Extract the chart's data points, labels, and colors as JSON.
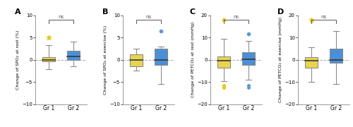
{
  "panels": [
    {
      "label": "A",
      "ylabel": "Change of SPO₂ at rest (%)",
      "ylim": [
        -10,
        10
      ],
      "yticks": [
        -10,
        -5,
        0,
        5,
        10
      ],
      "groups": [
        {
          "name": "Gr 1",
          "color": "#e8d44d",
          "median": 0.0,
          "q1": -0.4,
          "q3": 0.6,
          "whislo": -2.2,
          "whishi": 3.2,
          "fliers_above": [
            5.0
          ],
          "fliers_above_marker": "*",
          "fliers_below": []
        },
        {
          "name": "Gr 2",
          "color": "#4a90d9",
          "median": 0.8,
          "q1": 0.0,
          "q3": 2.0,
          "whislo": -1.5,
          "whishi": 4.0,
          "fliers_above": [],
          "fliers_above_marker": "o",
          "fliers_below": []
        }
      ]
    },
    {
      "label": "B",
      "ylabel": "Change of SPO₂ at exercise (%)",
      "ylim": [
        -10,
        10
      ],
      "yticks": [
        -10,
        -5,
        0,
        5,
        10
      ],
      "groups": [
        {
          "name": "Gr 1",
          "color": "#e8d44d",
          "median": 0.0,
          "q1": -1.5,
          "q3": 1.2,
          "whislo": -2.5,
          "whishi": 2.5,
          "fliers_above": [],
          "fliers_above_marker": "*",
          "fliers_below": []
        },
        {
          "name": "Gr 2",
          "color": "#4a90d9",
          "median": 0.0,
          "q1": -1.2,
          "q3": 2.5,
          "whislo": -5.5,
          "whishi": 3.0,
          "fliers_above": [
            6.5
          ],
          "fliers_above_marker": "o",
          "fliers_below": []
        }
      ]
    },
    {
      "label": "C",
      "ylabel": "Change of PETCO₂ at rest (mmHg)",
      "ylim": [
        -20,
        20
      ],
      "yticks": [
        -20,
        -10,
        0,
        10,
        20
      ],
      "groups": [
        {
          "name": "Gr 1",
          "color": "#e8d44d",
          "median": -0.5,
          "q1": -3.5,
          "q3": 1.5,
          "whislo": -9.5,
          "whishi": 9.5,
          "fliers_above": [
            18.0
          ],
          "fliers_above_marker": "o",
          "fliers_below": [
            -11.5,
            -12.5
          ]
        },
        {
          "name": "Gr 2",
          "color": "#4a90d9",
          "median": 0.2,
          "q1": -2.5,
          "q3": 3.5,
          "whislo": -9.0,
          "whishi": 8.5,
          "fliers_above": [
            11.5
          ],
          "fliers_above_marker": "o",
          "fliers_below": [
            -11.5,
            -12.5
          ]
        }
      ]
    },
    {
      "label": "D",
      "ylabel": "Change of PETCO₂ at exercise (mmHg)",
      "ylim": [
        -20,
        20
      ],
      "yticks": [
        -20,
        -10,
        0,
        10,
        20
      ],
      "groups": [
        {
          "name": "Gr 1",
          "color": "#e8d44d",
          "median": -0.5,
          "q1": -3.5,
          "q3": 1.0,
          "whislo": -10.0,
          "whishi": 5.5,
          "fliers_above": [
            18.0
          ],
          "fliers_above_marker": "*",
          "fliers_below": []
        },
        {
          "name": "Gr 2",
          "color": "#4a90d9",
          "median": 0.0,
          "q1": -1.5,
          "q3": 5.0,
          "whislo": -11.0,
          "whishi": 13.0,
          "fliers_above": [],
          "fliers_above_marker": "o",
          "fliers_below": []
        }
      ]
    }
  ],
  "box_width": 0.52,
  "linecolor": "#888888",
  "mediancolor": "#333333",
  "ns_color": "#555555",
  "background_color": "#ffffff",
  "flier_yellow": "#e8c800",
  "flier_blue": "#5599dd"
}
